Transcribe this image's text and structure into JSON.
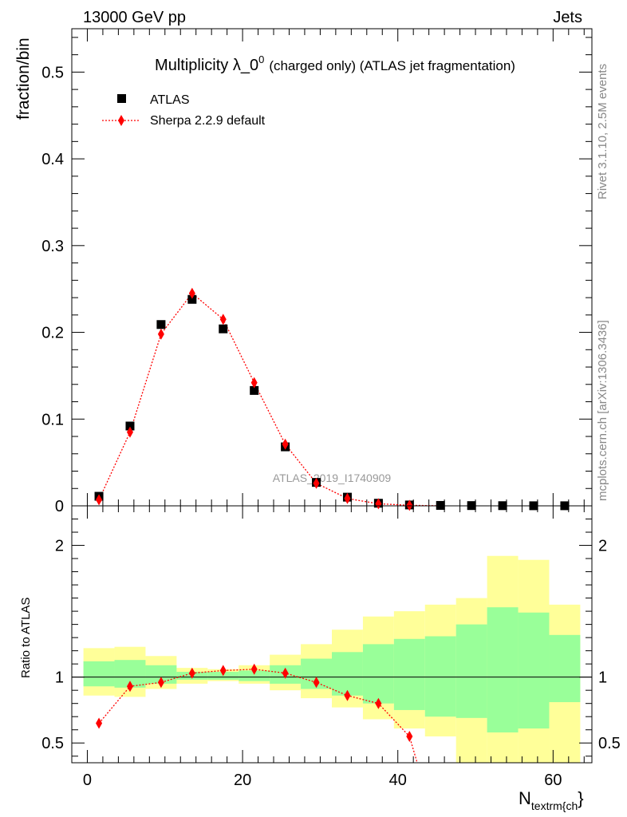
{
  "header": {
    "left": "13000 GeV pp",
    "right": "Jets"
  },
  "title": {
    "main": "Multiplicity λ_0",
    "superscript": "0",
    "rest": "(charged only) (ATLAS jet fragmentation)"
  },
  "side_texts": {
    "rivet": "Rivet 3.1.10,  2.5M events",
    "mcplots": "mcplots.cern.ch [arXiv:1306.3436]"
  },
  "watermark": "ATLAS_2019_I1740909",
  "legend": {
    "data_label": "ATLAS",
    "mc_label": "Sherpa 2.2.9 default"
  },
  "colors": {
    "data": "#000000",
    "mc": "#ff0000",
    "band_inner": "#99ff99",
    "band_outer": "#ffff99"
  },
  "chart_data": [
    {
      "type": "scatter",
      "ylabel": "fraction/bin",
      "xlim": [
        -2,
        65
      ],
      "ylim": [
        0,
        0.55
      ],
      "yticks": [
        0,
        0.1,
        0.2,
        0.3,
        0.4,
        0.5
      ],
      "ytick_labels": [
        "0",
        "0.1",
        "0.2",
        "0.3",
        "0.4",
        "0.5"
      ],
      "series": [
        {
          "name": "ATLAS",
          "x": [
            1.5,
            5.5,
            9.5,
            13.5,
            17.5,
            21.5,
            25.5,
            29.5,
            33.5,
            37.5,
            41.5,
            45.5,
            49.5,
            53.5,
            57.5,
            61.5
          ],
          "y": [
            0.011,
            0.092,
            0.209,
            0.238,
            0.204,
            0.133,
            0.068,
            0.027,
            0.01,
            0.003,
            0.001,
            0.0005,
            0.0003,
            0.0002,
            0.0001,
            0.0001
          ]
        },
        {
          "name": "Sherpa 2.2.9 default",
          "x": [
            1.5,
            5.5,
            9.5,
            13.5,
            17.5,
            21.5,
            25.5,
            29.5,
            33.5,
            37.5,
            41.5,
            45.5
          ],
          "y": [
            0.007,
            0.085,
            0.198,
            0.245,
            0.215,
            0.142,
            0.071,
            0.026,
            0.0085,
            0.0024,
            0.0006,
            0.0
          ]
        }
      ]
    },
    {
      "type": "line",
      "ylabel": "Ratio to ATLAS",
      "xlabel": "N",
      "xlabel_sub": "textrm{ch",
      "xlabel_suffix": "}",
      "xlim": [
        -2,
        65
      ],
      "ylim": [
        0.35,
        2.3
      ],
      "yticks": [
        0.5,
        1,
        2
      ],
      "ytick_labels": [
        "0.5",
        "1",
        "2"
      ],
      "xticks": [
        0,
        20,
        40,
        60
      ],
      "xtick_labels": [
        "0",
        "20",
        "40",
        "60"
      ],
      "reference_line": 1,
      "bins": [
        [
          -0.5,
          3.5
        ],
        [
          3.5,
          7.5
        ],
        [
          7.5,
          11.5
        ],
        [
          11.5,
          15.5
        ],
        [
          15.5,
          19.5
        ],
        [
          19.5,
          23.5
        ],
        [
          23.5,
          27.5
        ],
        [
          27.5,
          31.5
        ],
        [
          31.5,
          35.5
        ],
        [
          35.5,
          39.5
        ],
        [
          39.5,
          43.5
        ],
        [
          43.5,
          47.5
        ],
        [
          47.5,
          51.5
        ],
        [
          51.5,
          55.5
        ],
        [
          55.5,
          59.5
        ],
        [
          59.5,
          63.5
        ]
      ],
      "band_outer": {
        "lo": [
          0.86,
          0.85,
          0.91,
          0.95,
          0.97,
          0.95,
          0.9,
          0.84,
          0.77,
          0.68,
          0.61,
          0.55,
          0.35,
          0.35,
          0.35,
          0.35
        ],
        "hi": [
          1.22,
          1.23,
          1.16,
          1.07,
          1.06,
          1.09,
          1.17,
          1.25,
          1.36,
          1.46,
          1.5,
          1.55,
          1.6,
          1.92,
          1.89,
          1.55
        ]
      },
      "band_inner": {
        "lo": [
          0.93,
          0.92,
          0.95,
          0.98,
          0.98,
          0.97,
          0.95,
          0.91,
          0.86,
          0.8,
          0.75,
          0.7,
          0.69,
          0.58,
          0.61,
          0.81
        ],
        "hi": [
          1.12,
          1.13,
          1.09,
          1.04,
          1.04,
          1.05,
          1.09,
          1.14,
          1.19,
          1.25,
          1.29,
          1.31,
          1.4,
          1.53,
          1.49,
          1.32
        ]
      },
      "series": [
        {
          "name": "Sherpa 2.2.9 default",
          "x": [
            1.5,
            5.5,
            9.5,
            13.5,
            17.5,
            21.5,
            25.5,
            29.5,
            33.5,
            37.5,
            41.5,
            42.5
          ],
          "y": [
            0.65,
            0.93,
            0.96,
            1.03,
            1.05,
            1.06,
            1.03,
            0.96,
            0.86,
            0.8,
            0.55,
            0.33
          ]
        }
      ]
    }
  ]
}
